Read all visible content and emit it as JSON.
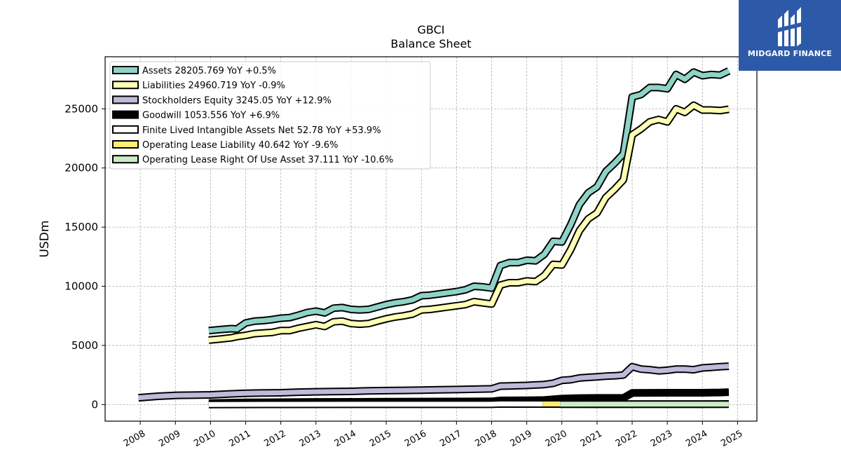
{
  "chart_data": {
    "type": "line",
    "title": "GBCI",
    "subtitle": "Balance  Sheet",
    "xlabel": "",
    "ylabel": "USDm",
    "xlim": [
      2007.0,
      2025.55
    ],
    "ylim": [
      -1400,
      29400
    ],
    "x_ticks": [
      "2008",
      "2009",
      "2010",
      "2011",
      "2012",
      "2013",
      "2014",
      "2015",
      "2016",
      "2017",
      "2018",
      "2019",
      "2020",
      "2021",
      "2022",
      "2023",
      "2024",
      "2025"
    ],
    "y_ticks": [
      0,
      5000,
      10000,
      15000,
      20000,
      25000
    ],
    "y_tick_labels": [
      "0",
      "5000",
      "10000",
      "15000",
      "20000",
      "25000"
    ],
    "grid": true,
    "legend_position": "top-left",
    "series": [
      {
        "name": "Assets",
        "legend": "Assets  28205.769 YoY +0.5%",
        "color": "#8dd3c7",
        "x": [
          2009.95,
          2010.3,
          2010.6,
          2010.75,
          2011.0,
          2011.25,
          2011.5,
          2011.75,
          2012.0,
          2012.25,
          2012.5,
          2012.75,
          2013.0,
          2013.25,
          2013.5,
          2013.75,
          2014.0,
          2014.25,
          2014.5,
          2014.75,
          2015.0,
          2015.25,
          2015.5,
          2015.75,
          2016.0,
          2016.25,
          2016.5,
          2016.75,
          2017.0,
          2017.25,
          2017.5,
          2017.75,
          2018.0,
          2018.25,
          2018.5,
          2018.75,
          2019.0,
          2019.25,
          2019.5,
          2019.75,
          2020.0,
          2020.25,
          2020.5,
          2020.75,
          2021.0,
          2021.25,
          2021.5,
          2021.75,
          2022.0,
          2022.25,
          2022.5,
          2022.75,
          2023.0,
          2023.25,
          2023.5,
          2023.75,
          2024.0,
          2024.25,
          2024.5,
          2024.75
        ],
        "values": [
          6250,
          6350,
          6420,
          6380,
          6900,
          7050,
          7100,
          7180,
          7300,
          7350,
          7550,
          7780,
          7900,
          7750,
          8150,
          8200,
          8050,
          8000,
          8050,
          8250,
          8450,
          8600,
          8700,
          8850,
          9200,
          9250,
          9350,
          9450,
          9550,
          9700,
          10000,
          9950,
          9850,
          11750,
          12000,
          12000,
          12200,
          12150,
          12700,
          13800,
          13750,
          15200,
          16900,
          17900,
          18400,
          19700,
          20400,
          21200,
          26000,
          26200,
          26800,
          26800,
          26700,
          27900,
          27500,
          28100,
          27800,
          27900,
          27850,
          28205.769
        ]
      },
      {
        "name": "Liabilities",
        "legend": "Liabilities  24960.719 YoY -0.9%",
        "color": "#ffffb3",
        "x": [
          2009.95,
          2010.3,
          2010.6,
          2010.75,
          2011.0,
          2011.25,
          2011.5,
          2011.75,
          2012.0,
          2012.25,
          2012.5,
          2012.75,
          2013.0,
          2013.25,
          2013.5,
          2013.75,
          2014.0,
          2014.25,
          2014.5,
          2014.75,
          2015.0,
          2015.25,
          2015.5,
          2015.75,
          2016.0,
          2016.25,
          2016.5,
          2016.75,
          2017.0,
          2017.25,
          2017.5,
          2017.75,
          2018.0,
          2018.25,
          2018.5,
          2018.75,
          2019.0,
          2019.25,
          2019.5,
          2019.75,
          2020.0,
          2020.25,
          2020.5,
          2020.75,
          2021.0,
          2021.25,
          2021.5,
          2021.75,
          2022.0,
          2022.25,
          2022.5,
          2022.75,
          2023.0,
          2023.25,
          2023.5,
          2023.75,
          2024.0,
          2024.25,
          2024.5,
          2024.75
        ],
        "values": [
          5450,
          5550,
          5650,
          5750,
          5850,
          6000,
          6050,
          6100,
          6250,
          6250,
          6450,
          6600,
          6750,
          6600,
          7000,
          7050,
          6850,
          6800,
          6850,
          7050,
          7250,
          7400,
          7500,
          7650,
          8000,
          8050,
          8150,
          8250,
          8350,
          8450,
          8700,
          8600,
          8500,
          10100,
          10300,
          10300,
          10450,
          10400,
          10900,
          11850,
          11800,
          13100,
          14700,
          15700,
          16200,
          17500,
          18200,
          19000,
          22800,
          23300,
          23900,
          24100,
          23900,
          25000,
          24700,
          25300,
          24900,
          24900,
          24850,
          24960.719
        ]
      },
      {
        "name": "Stockholders Equity",
        "legend": "Stockholders Equity  3245.05 YoY +12.9%",
        "color": "#bebada",
        "x": [
          2007.95,
          2008.5,
          2009.0,
          2009.5,
          2010.0,
          2010.5,
          2011.0,
          2011.5,
          2012.0,
          2012.5,
          2013.0,
          2013.5,
          2014.0,
          2014.5,
          2015.0,
          2015.5,
          2016.0,
          2016.5,
          2017.0,
          2017.5,
          2018.0,
          2018.25,
          2018.5,
          2019.0,
          2019.5,
          2019.75,
          2020.0,
          2020.25,
          2020.5,
          2020.75,
          2021.0,
          2021.25,
          2021.5,
          2021.75,
          2022.0,
          2022.25,
          2022.5,
          2022.75,
          2023.0,
          2023.25,
          2023.5,
          2023.75,
          2024.0,
          2024.25,
          2024.5,
          2024.75
        ],
        "values": [
          580,
          700,
          780,
          800,
          820,
          900,
          950,
          980,
          1000,
          1050,
          1080,
          1100,
          1120,
          1160,
          1180,
          1200,
          1220,
          1250,
          1270,
          1300,
          1330,
          1560,
          1580,
          1620,
          1700,
          1800,
          2050,
          2100,
          2250,
          2300,
          2350,
          2400,
          2430,
          2500,
          3200,
          3000,
          2950,
          2850,
          2900,
          3000,
          3000,
          2950,
          3100,
          3150,
          3200,
          3245.05
        ]
      },
      {
        "name": "Goodwill",
        "legend": "Goodwill  1053.556 YoY +6.9%",
        "color": "#000000",
        "x": [
          2009.95,
          2010.5,
          2011.0,
          2012.0,
          2013.0,
          2014.0,
          2015.0,
          2016.0,
          2017.0,
          2018.0,
          2018.25,
          2019.0,
          2019.5,
          2020.0,
          2020.5,
          2021.0,
          2021.75,
          2022.0,
          2022.5,
          2023.0,
          2023.5,
          2024.0,
          2024.5,
          2024.75
        ],
        "values": [
          120,
          150,
          180,
          200,
          220,
          230,
          240,
          250,
          260,
          270,
          350,
          360,
          380,
          500,
          550,
          560,
          560,
          980,
          990,
          1000,
          1000,
          1000,
          1020,
          1053.556
        ]
      },
      {
        "name": "Finite Lived Intangible Assets Net",
        "legend": "Finite Lived Intangible Assets Net  52.78 YoY +53.9%",
        "color": "#ffffff",
        "x": [
          2009.95,
          2012.0,
          2015.0,
          2018.0,
          2018.25,
          2019.0,
          2020.0,
          2021.0,
          2022.0,
          2023.0,
          2024.0,
          2024.75
        ],
        "values": [
          10,
          20,
          25,
          30,
          60,
          50,
          45,
          40,
          38,
          36,
          35,
          52.78
        ]
      },
      {
        "name": "Operating Lease Liability",
        "legend": "Operating Lease Liability  40.642 YoY -9.6%",
        "color": "#ffed6f",
        "x": [
          2019.45,
          2019.95
        ],
        "values": [
          50,
          50
        ]
      },
      {
        "name": "Operating Lease Right Of Use Asset",
        "legend": "Operating Lease Right Of Use Asset  37.111 YoY -10.6%",
        "color": "#ccebc5",
        "x": [
          2019.95,
          2024.75
        ],
        "values": [
          40,
          37.111
        ]
      }
    ]
  },
  "logo": {
    "brand": "MIDGARD FINANCE",
    "bg_color": "#2d5aa8"
  }
}
